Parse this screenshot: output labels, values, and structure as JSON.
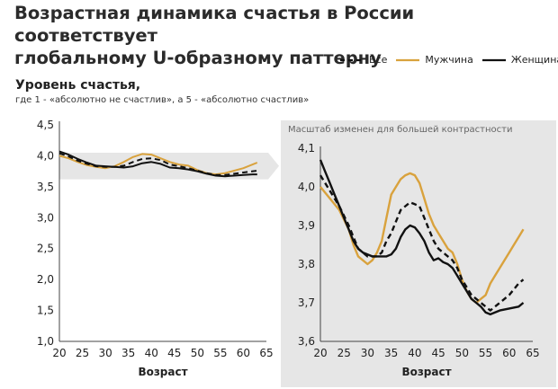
{
  "title_line1": "Возрастная динамика счастья в России соответствует",
  "title_line2": "глобальному U-образному паттерну",
  "y_title": "Уровень счастья,",
  "y_subtitle": "где 1 - «абсолютно не счастлив», а 5 -  «абсолютно счастлив»",
  "zoom_note": "Масштаб изменен для большей контрастности",
  "legend": [
    {
      "label": "Все",
      "style": "dashed",
      "color": "#111111"
    },
    {
      "label": "Мужчина",
      "style": "solid",
      "color": "#d9a23d"
    },
    {
      "label": "Женщина",
      "style": "solid",
      "color": "#111111"
    }
  ],
  "colors": {
    "men": "#d9a23d",
    "all": "#111111",
    "women": "#111111",
    "zoom_band": "#e6e6e6"
  },
  "chart_data": [
    {
      "type": "line",
      "xlabel": "Возраст",
      "ylabel": "",
      "xlim": [
        20,
        65
      ],
      "ylim": [
        1.0,
        4.5
      ],
      "x_ticks": [
        "20",
        "25",
        "30",
        "35",
        "40",
        "45",
        "50",
        "55",
        "60",
        "65"
      ],
      "y_ticks": [
        "1,0",
        "1,5",
        "2,0",
        "2,5",
        "3,0",
        "3,5",
        "4,0",
        "4,5"
      ],
      "x": [
        20,
        22,
        24,
        26,
        28,
        30,
        32,
        34,
        36,
        38,
        40,
        42,
        44,
        46,
        48,
        50,
        52,
        54,
        56,
        58,
        60,
        62,
        63
      ],
      "series": [
        {
          "name": "Мужчина",
          "values": [
            4.0,
            3.96,
            3.9,
            3.85,
            3.82,
            3.8,
            3.83,
            3.9,
            3.98,
            4.03,
            4.02,
            3.96,
            3.9,
            3.86,
            3.84,
            3.77,
            3.72,
            3.7,
            3.72,
            3.76,
            3.8,
            3.86,
            3.89
          ]
        },
        {
          "name": "Все",
          "values": [
            4.04,
            3.99,
            3.92,
            3.87,
            3.83,
            3.82,
            3.82,
            3.84,
            3.9,
            3.95,
            3.96,
            3.93,
            3.86,
            3.83,
            3.8,
            3.76,
            3.72,
            3.69,
            3.69,
            3.71,
            3.73,
            3.75,
            3.76
          ]
        },
        {
          "name": "Женщина",
          "values": [
            4.07,
            4.02,
            3.95,
            3.89,
            3.84,
            3.83,
            3.82,
            3.81,
            3.83,
            3.88,
            3.9,
            3.87,
            3.81,
            3.8,
            3.78,
            3.75,
            3.71,
            3.68,
            3.67,
            3.68,
            3.69,
            3.7,
            3.7
          ]
        }
      ]
    },
    {
      "type": "line",
      "xlabel": "Возраст",
      "ylabel": "",
      "xlim": [
        20,
        65
      ],
      "ylim": [
        3.6,
        4.1
      ],
      "x_ticks": [
        "20",
        "25",
        "30",
        "35",
        "40",
        "45",
        "50",
        "55",
        "60",
        "65"
      ],
      "y_ticks": [
        "3,6",
        "3,7",
        "3,8",
        "3,9",
        "4,0",
        "4,1"
      ],
      "series": [
        {
          "name": "Мужчина",
          "x": [
            20,
            22,
            24,
            26,
            27,
            28,
            29,
            30,
            31,
            32,
            33,
            34,
            35,
            36,
            37,
            38,
            39,
            40,
            41,
            42,
            43,
            44,
            45,
            46,
            47,
            48,
            49,
            50,
            51,
            52,
            53,
            54,
            55,
            56,
            57,
            58,
            59,
            60,
            61,
            62,
            63
          ],
          "values": [
            4.0,
            3.97,
            3.94,
            3.89,
            3.85,
            3.82,
            3.81,
            3.8,
            3.81,
            3.83,
            3.86,
            3.92,
            3.98,
            4.0,
            4.02,
            4.03,
            4.035,
            4.03,
            4.01,
            3.97,
            3.93,
            3.9,
            3.88,
            3.86,
            3.84,
            3.83,
            3.8,
            3.76,
            3.73,
            3.71,
            3.7,
            3.71,
            3.72,
            3.75,
            3.77,
            3.79,
            3.81,
            3.83,
            3.85,
            3.87,
            3.89
          ]
        },
        {
          "name": "Все",
          "x": [
            20,
            22,
            24,
            26,
            27,
            28,
            29,
            30,
            31,
            32,
            33,
            34,
            35,
            36,
            37,
            38,
            39,
            40,
            41,
            42,
            43,
            44,
            45,
            46,
            47,
            48,
            49,
            50,
            51,
            52,
            53,
            54,
            55,
            56,
            58,
            60,
            62,
            63
          ],
          "values": [
            4.03,
            3.99,
            3.95,
            3.9,
            3.87,
            3.84,
            3.83,
            3.82,
            3.82,
            3.82,
            3.83,
            3.86,
            3.88,
            3.91,
            3.94,
            3.95,
            3.96,
            3.955,
            3.95,
            3.92,
            3.89,
            3.86,
            3.84,
            3.83,
            3.82,
            3.81,
            3.79,
            3.76,
            3.74,
            3.72,
            3.71,
            3.7,
            3.69,
            3.68,
            3.7,
            3.72,
            3.75,
            3.76
          ]
        },
        {
          "name": "Женщина",
          "x": [
            20,
            21,
            22,
            23,
            24,
            25,
            26,
            27,
            28,
            29,
            30,
            31,
            32,
            33,
            34,
            35,
            36,
            37,
            38,
            39,
            40,
            41,
            42,
            43,
            44,
            45,
            46,
            47,
            48,
            49,
            50,
            51,
            52,
            53,
            54,
            55,
            56,
            57,
            58,
            60,
            62,
            63
          ],
          "values": [
            4.07,
            4.04,
            4.01,
            3.98,
            3.95,
            3.92,
            3.89,
            3.86,
            3.84,
            3.83,
            3.825,
            3.82,
            3.82,
            3.82,
            3.82,
            3.825,
            3.84,
            3.87,
            3.89,
            3.9,
            3.895,
            3.88,
            3.86,
            3.83,
            3.81,
            3.815,
            3.805,
            3.8,
            3.79,
            3.77,
            3.75,
            3.73,
            3.71,
            3.7,
            3.69,
            3.675,
            3.67,
            3.675,
            3.68,
            3.685,
            3.69,
            3.7
          ]
        }
      ]
    }
  ]
}
